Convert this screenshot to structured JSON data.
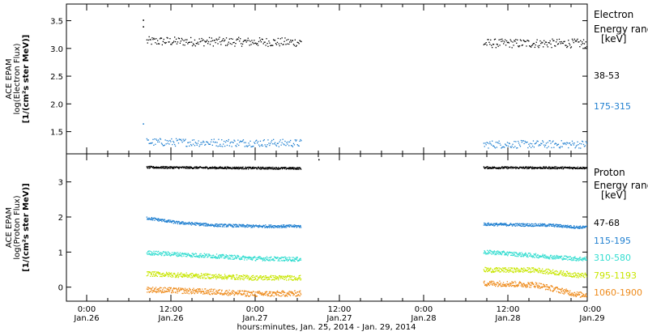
{
  "chart_data": [
    {
      "type": "scatter",
      "panel": "electrons",
      "ylabel_lines": [
        "ACE EPAM",
        "log(Electron Flux)",
        "[1/(cm²s ster MeV)]"
      ],
      "yticks": [
        "1.5",
        "2.0",
        "2.5",
        "3.0",
        "3.5"
      ],
      "ylim": [
        1.1,
        3.8
      ],
      "legend_title_lines": [
        "Electron",
        "Energy range",
        "[keV]"
      ],
      "x_range_hours": [
        -12,
        96
      ],
      "gaps_hours": [
        [
          54,
          58
        ]
      ],
      "series": [
        {
          "name": "38-53",
          "color": "#000000",
          "level": 3.12,
          "start_hours": 8,
          "end_hours": 105,
          "gap_hours": [
            33,
            56
          ],
          "noise": 0.08,
          "trend": [
            [
              8,
              3.14
            ],
            [
              30,
              3.12
            ],
            [
              56,
              3.1
            ],
            [
              80,
              3.1
            ],
            [
              105,
              3.0
            ]
          ],
          "outliers": [
            [
              8,
              3.52
            ],
            [
              8,
              3.4
            ],
            [
              80,
              3.58
            ]
          ]
        },
        {
          "name": "175-315",
          "color": "#1f7fd0",
          "level": 1.3,
          "start_hours": 8,
          "end_hours": 105,
          "gap_hours": [
            33,
            56
          ],
          "noise": 0.07,
          "trend": [
            [
              8,
              1.32
            ],
            [
              30,
              1.3
            ],
            [
              56,
              1.28
            ],
            [
              80,
              1.28
            ],
            [
              105,
              1.26
            ]
          ],
          "outliers": [
            [
              8,
              1.65
            ]
          ]
        }
      ]
    },
    {
      "type": "scatter",
      "panel": "protons",
      "ylabel_lines": [
        "ACE EPAM",
        "log(Proton Flux)",
        "[1/(cm²s ster MeV)]"
      ],
      "yticks": [
        "0",
        "1",
        "2",
        "3"
      ],
      "ylim": [
        -0.4,
        3.8
      ],
      "legend_title_lines": [
        "Proton",
        "Energy range",
        "[keV]"
      ],
      "xlabel": "hours:minutes, Jan. 25, 2014 - Jan. 29, 2014",
      "xticks": [
        {
          "time": "0:00",
          "date": "Jan.26"
        },
        {
          "time": "12:00",
          "date": "Jan.26"
        },
        {
          "time": "0:00",
          "date": "Jan.27"
        },
        {
          "time": "12:00",
          "date": "Jan.27"
        },
        {
          "time": "0:00",
          "date": "Jan.28"
        },
        {
          "time": "12:00",
          "date": "Jan.28"
        },
        {
          "time": "0:00",
          "date": "Jan.29"
        }
      ],
      "xtick_hours": [
        0,
        12,
        24,
        36,
        48,
        60,
        72
      ],
      "series": [
        {
          "name": "47-68",
          "color": "#000000",
          "noise": 0.03,
          "trend": [
            [
              8,
              3.43
            ],
            [
              30,
              3.4
            ],
            [
              56,
              3.42
            ],
            [
              80,
              3.41
            ],
            [
              105,
              3.4
            ]
          ],
          "outliers": [
            [
              33,
              3.65
            ]
          ]
        },
        {
          "name": "115-195",
          "color": "#1f7fd0",
          "noise": 0.04,
          "trend": [
            [
              8,
              2.0
            ],
            [
              13,
              1.85
            ],
            [
              18,
              1.78
            ],
            [
              24,
              1.75
            ],
            [
              33,
              1.75
            ],
            [
              39,
              1.8
            ],
            [
              43,
              1.95
            ],
            [
              47,
              1.9
            ],
            [
              50,
              1.85
            ],
            [
              58,
              1.8
            ],
            [
              66,
              1.78
            ],
            [
              70,
              1.72
            ]
          ]
        },
        {
          "name": "310-580",
          "color": "#33ddd0",
          "noise": 0.06,
          "trend": [
            [
              8,
              1.0
            ],
            [
              18,
              0.9
            ],
            [
              24,
              0.83
            ],
            [
              33,
              0.8
            ],
            [
              39,
              0.85
            ],
            [
              45,
              1.0
            ],
            [
              50,
              1.05
            ],
            [
              58,
              1.0
            ],
            [
              66,
              0.88
            ],
            [
              70,
              0.82
            ]
          ]
        },
        {
          "name": "795-1193",
          "color": "#c8e600",
          "noise": 0.07,
          "trend": [
            [
              8,
              0.4
            ],
            [
              18,
              0.32
            ],
            [
              24,
              0.28
            ],
            [
              33,
              0.28
            ],
            [
              39,
              0.35
            ],
            [
              45,
              0.55
            ],
            [
              50,
              0.55
            ],
            [
              58,
              0.5
            ],
            [
              64,
              0.5
            ],
            [
              70,
              0.35
            ]
          ]
        },
        {
          "name": "1060-1900",
          "color": "#ee8a1a",
          "noise": 0.08,
          "trend": [
            [
              8,
              -0.05
            ],
            [
              18,
              -0.12
            ],
            [
              24,
              -0.18
            ],
            [
              33,
              -0.16
            ],
            [
              39,
              -0.08
            ],
            [
              45,
              0.1
            ],
            [
              50,
              0.12
            ],
            [
              58,
              0.12
            ],
            [
              64,
              0.08
            ],
            [
              70,
              -0.2
            ]
          ]
        }
      ]
    }
  ]
}
